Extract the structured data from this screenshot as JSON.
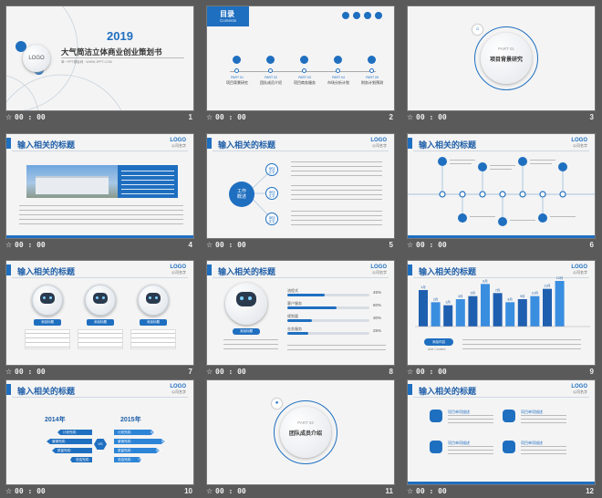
{
  "slide_meta": {
    "time": "00 : 00",
    "star": "☆"
  },
  "common": {
    "header": "输入相关的标题",
    "logo": "LOGO",
    "logo_sub": "公司名字"
  },
  "s1": {
    "year": "2019",
    "title": "大气简洁立体商业创业策划书",
    "logo": "LOGO",
    "sub": "单一PPT模板网 · WWW.1PPT.COM",
    "num": "1"
  },
  "s2": {
    "title": "目录",
    "sub": "Contents",
    "num": "2",
    "items": [
      {
        "part": "PART 01",
        "label": "项目背景研究"
      },
      {
        "part": "PART 02",
        "label": "团队成员介绍"
      },
      {
        "part": "PART 03",
        "label": "项目商务服务"
      },
      {
        "part": "PART 04",
        "label": "市场分析计划"
      },
      {
        "part": "PART 05",
        "label": "财务计划预测"
      }
    ]
  },
  "s3": {
    "part": "PART 01",
    "label": "项目背景研究",
    "num": "3"
  },
  "s4": {
    "num": "4"
  },
  "s5": {
    "num": "5",
    "center": "工作\n概述",
    "nodes": [
      "添加\n文字",
      "添加\n文字",
      "添加\n文字"
    ]
  },
  "s6": {
    "num": "6"
  },
  "s7": {
    "num": "7",
    "buttons": [
      "添加标题",
      "添加标题",
      "添加标题"
    ]
  },
  "s8": {
    "num": "8",
    "button": "添加标题",
    "bars": [
      {
        "label": "流程式",
        "pct": "45%",
        "value": 45
      },
      {
        "label": "客户服务",
        "pct": "60%",
        "value": 60
      },
      {
        "label": "规划量",
        "pct": "30%",
        "value": 30
      },
      {
        "label": "业务服务",
        "pct": "25%",
        "value": 25
      }
    ]
  },
  "s9": {
    "num": "9",
    "button": "添加内容",
    "sub": "Add Content",
    "chart_data": {
      "type": "bar",
      "categories": [
        "1月",
        "2月",
        "3月",
        "4月",
        "5月",
        "6月",
        "7月",
        "8月",
        "9月",
        "10月",
        "11月",
        "12月"
      ],
      "values": [
        60,
        40,
        35,
        45,
        50,
        70,
        55,
        40,
        45,
        50,
        62,
        75
      ]
    }
  },
  "s10": {
    "num": "10",
    "y1": "2014年",
    "y2": "2015年",
    "vs": "VS",
    "labels": [
      "计划完成：",
      "营销完成：",
      "质量完成：",
      "总结完成："
    ],
    "vals": [
      "80%",
      "60%",
      "50%",
      "70%"
    ]
  },
  "s11": {
    "num": "11",
    "part": "PART 02",
    "label": "团队成员介绍"
  },
  "s12": {
    "num": "12",
    "titles": [
      "项目单项描述",
      "项目单项描述",
      "项目单项描述",
      "项目单项描述"
    ]
  }
}
